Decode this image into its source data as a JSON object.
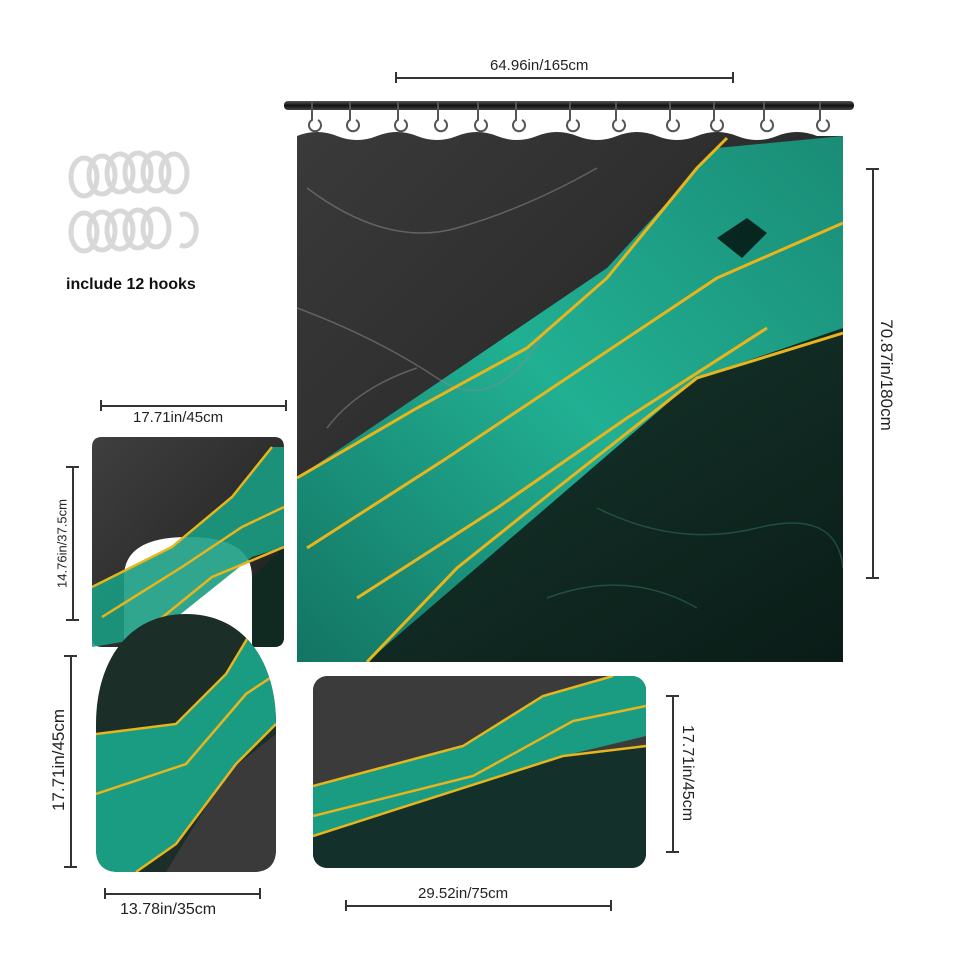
{
  "hooks": {
    "caption": "include 12 hooks",
    "count": 12
  },
  "dimensions": {
    "curtain_width": "64.96in/165cm",
    "curtain_height": "70.87in/180cm",
    "contour_width": "17.71in/45cm",
    "contour_height": "14.76in/37.5cm",
    "lid_height": "17.71in/45cm",
    "lid_width": "13.78in/35cm",
    "mat_height": "17.71in/45cm",
    "mat_width": "29.52in/75cm"
  },
  "colors": {
    "dark_marble": "#2b2b2b",
    "deep_green": "#0f2a22",
    "teal": "#1b9c82",
    "gold": "#e8b51c"
  }
}
